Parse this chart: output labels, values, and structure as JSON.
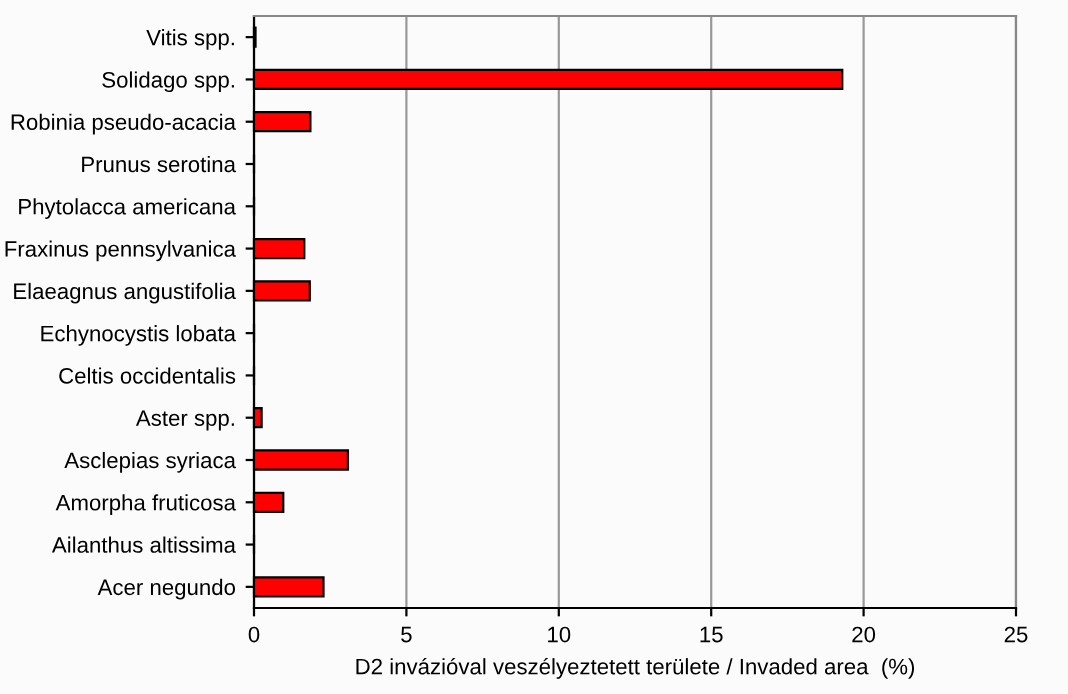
{
  "chart_data": {
    "type": "bar",
    "orientation": "horizontal",
    "xlabel": "D2 invázióval veszélyeztetett területe / Invaded area  (%)",
    "categories": [
      "Vitis spp.",
      "Solidago spp.",
      "Robinia pseudo-acacia",
      "Prunus serotina",
      "Phytolacca americana",
      "Fraxinus pennsylvanica",
      "Elaeagnus angustifolia",
      "Echynocystis lobata",
      "Celtis occidentalis",
      "Aster spp.",
      "Asclepias syriaca",
      "Amorpha fruticosa",
      "Ailanthus altissima",
      "Acer negundo"
    ],
    "values": [
      0.05,
      19.3,
      1.85,
      0,
      0,
      1.65,
      1.83,
      0,
      0,
      0.25,
      3.08,
      0.96,
      0,
      2.28
    ],
    "color": "#ff0000",
    "xlim": [
      0,
      25
    ],
    "xticks": [
      0,
      5,
      10,
      15,
      20,
      25
    ],
    "grid": "x"
  }
}
